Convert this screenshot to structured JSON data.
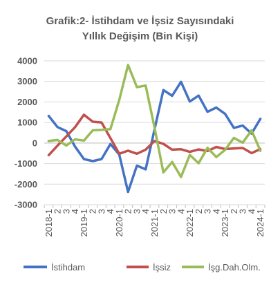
{
  "chart_data": {
    "type": "line",
    "title_line1": "Grafik:2- İstihdam ve İşsiz Sayısındaki",
    "title_line2": "Yıllık Değişim (Bin Kişi)",
    "xlabel": "",
    "ylabel": "",
    "ylim": [
      -3000,
      4000
    ],
    "yticks": [
      4000,
      3000,
      2000,
      1000,
      0,
      -1000,
      -2000,
      -3000
    ],
    "grid": true,
    "legend_position": "bottom",
    "x_labels": [
      "2018-1",
      "2",
      "3",
      "4",
      "2019-1",
      "2",
      "3",
      "4",
      "2020-1",
      "2",
      "3",
      "4",
      "2021-1",
      "2",
      "3",
      "4",
      "2022-1",
      "2",
      "3",
      "4",
      "2023-1",
      "2",
      "3",
      "4",
      "2024-1"
    ],
    "series": [
      {
        "name": "İstihdam",
        "color": "#4472C4",
        "values": [
          1320,
          780,
          580,
          -180,
          -780,
          -880,
          -780,
          -50,
          -560,
          -2380,
          -1100,
          -1280,
          660,
          2580,
          2300,
          2980,
          2020,
          2310,
          1520,
          1730,
          1420,
          740,
          850,
          460,
          1180
        ]
      },
      {
        "name": "İşsiz",
        "color": "#C0504D",
        "values": [
          -590,
          -130,
          320,
          780,
          1380,
          1040,
          1000,
          240,
          -520,
          -370,
          -520,
          -320,
          100,
          -40,
          -320,
          -300,
          -430,
          -310,
          -390,
          -190,
          -290,
          -260,
          -240,
          -490,
          -290
        ]
      },
      {
        "name": "İşg.Dah.Olm.",
        "color": "#9BBB59",
        "values": [
          100,
          150,
          -120,
          180,
          120,
          620,
          640,
          680,
          2100,
          3800,
          2720,
          2800,
          760,
          -1430,
          -920,
          -1650,
          -580,
          -980,
          -230,
          -680,
          -330,
          250,
          20,
          620,
          -380
        ]
      }
    ]
  }
}
